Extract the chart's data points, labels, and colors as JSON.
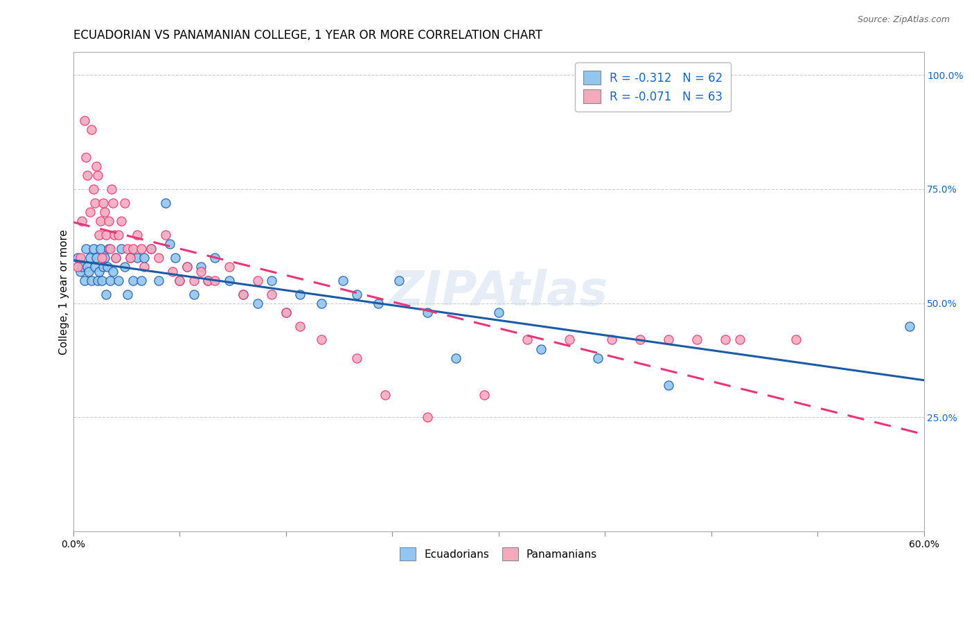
{
  "title": "ECUADORIAN VS PANAMANIAN COLLEGE, 1 YEAR OR MORE CORRELATION CHART",
  "source": "Source: ZipAtlas.com",
  "ylabel": "College, 1 year or more",
  "xlim": [
    0.0,
    0.6
  ],
  "ylim": [
    0.0,
    1.05
  ],
  "xtick_values": [
    0.0,
    0.075,
    0.15,
    0.225,
    0.3,
    0.375,
    0.45,
    0.525,
    0.6
  ],
  "xtick_label_left": "0.0%",
  "xtick_label_right": "60.0%",
  "ytick_labels_right": [
    "100.0%",
    "75.0%",
    "50.0%",
    "25.0%"
  ],
  "ytick_values_right": [
    1.0,
    0.75,
    0.5,
    0.25
  ],
  "R_ecu": -0.312,
  "N_ecu": 62,
  "R_pan": -0.071,
  "N_pan": 63,
  "color_ecu": "#92C5F0",
  "color_pan": "#F4AABC",
  "line_color_ecu": "#1A5BA6",
  "line_color_pan": "#E8357A",
  "watermark": "ZIPAtlas",
  "ecu_x": [
    0.003,
    0.005,
    0.006,
    0.008,
    0.009,
    0.01,
    0.011,
    0.012,
    0.013,
    0.014,
    0.015,
    0.016,
    0.017,
    0.018,
    0.019,
    0.02,
    0.021,
    0.022,
    0.023,
    0.024,
    0.025,
    0.026,
    0.028,
    0.03,
    0.032,
    0.034,
    0.036,
    0.038,
    0.04,
    0.042,
    0.045,
    0.048,
    0.05,
    0.055,
    0.06,
    0.065,
    0.068,
    0.072,
    0.075,
    0.08,
    0.085,
    0.09,
    0.095,
    0.1,
    0.11,
    0.12,
    0.13,
    0.14,
    0.15,
    0.16,
    0.175,
    0.19,
    0.2,
    0.215,
    0.23,
    0.25,
    0.27,
    0.3,
    0.33,
    0.37,
    0.42,
    0.59
  ],
  "ecu_y": [
    0.6,
    0.57,
    0.58,
    0.55,
    0.62,
    0.58,
    0.57,
    0.6,
    0.55,
    0.62,
    0.58,
    0.6,
    0.55,
    0.57,
    0.62,
    0.55,
    0.58,
    0.6,
    0.52,
    0.58,
    0.62,
    0.55,
    0.57,
    0.6,
    0.55,
    0.62,
    0.58,
    0.52,
    0.6,
    0.55,
    0.6,
    0.55,
    0.6,
    0.62,
    0.55,
    0.72,
    0.63,
    0.6,
    0.55,
    0.58,
    0.52,
    0.58,
    0.55,
    0.6,
    0.55,
    0.52,
    0.5,
    0.55,
    0.48,
    0.52,
    0.5,
    0.55,
    0.52,
    0.5,
    0.55,
    0.48,
    0.38,
    0.48,
    0.4,
    0.38,
    0.32,
    0.45
  ],
  "pan_x": [
    0.003,
    0.005,
    0.006,
    0.008,
    0.009,
    0.01,
    0.012,
    0.013,
    0.014,
    0.015,
    0.016,
    0.017,
    0.018,
    0.019,
    0.02,
    0.021,
    0.022,
    0.023,
    0.025,
    0.026,
    0.027,
    0.028,
    0.029,
    0.03,
    0.032,
    0.034,
    0.036,
    0.038,
    0.04,
    0.042,
    0.045,
    0.048,
    0.05,
    0.055,
    0.06,
    0.065,
    0.07,
    0.075,
    0.08,
    0.085,
    0.09,
    0.095,
    0.1,
    0.11,
    0.12,
    0.13,
    0.14,
    0.15,
    0.16,
    0.175,
    0.2,
    0.22,
    0.25,
    0.29,
    0.32,
    0.35,
    0.38,
    0.4,
    0.42,
    0.44,
    0.46,
    0.47,
    0.51
  ],
  "pan_y": [
    0.58,
    0.6,
    0.68,
    0.9,
    0.82,
    0.78,
    0.7,
    0.88,
    0.75,
    0.72,
    0.8,
    0.78,
    0.65,
    0.68,
    0.6,
    0.72,
    0.7,
    0.65,
    0.68,
    0.62,
    0.75,
    0.72,
    0.65,
    0.6,
    0.65,
    0.68,
    0.72,
    0.62,
    0.6,
    0.62,
    0.65,
    0.62,
    0.58,
    0.62,
    0.6,
    0.65,
    0.57,
    0.55,
    0.58,
    0.55,
    0.57,
    0.55,
    0.55,
    0.58,
    0.52,
    0.55,
    0.52,
    0.48,
    0.45,
    0.42,
    0.38,
    0.3,
    0.25,
    0.3,
    0.42,
    0.42,
    0.42,
    0.42,
    0.42,
    0.42,
    0.42,
    0.42,
    0.42
  ],
  "background_color": "#ffffff",
  "grid_color": "#cccccc",
  "title_fontsize": 12,
  "axis_label_fontsize": 11,
  "tick_fontsize": 10,
  "legend_label_ecu": "Ecuadorians",
  "legend_label_pan": "Panamanians"
}
